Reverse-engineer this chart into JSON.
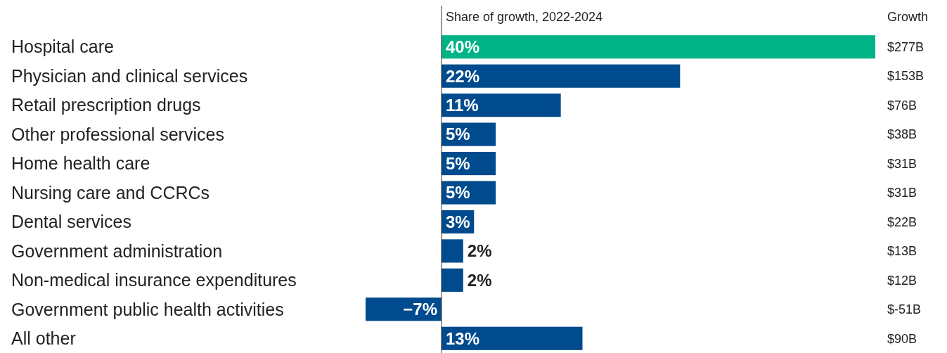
{
  "chart_data": {
    "type": "bar",
    "orientation": "horizontal",
    "title": "Share of growth, 2022-2024",
    "categories": [
      "Hospital care",
      "Physician and clinical services",
      "Retail prescription drugs",
      "Other professional services",
      "Home health care",
      "Nursing care and CCRCs",
      "Dental services",
      "Government administration",
      "Non-medical insurance expenditures",
      "Government public health activities",
      "All other"
    ],
    "values": [
      40,
      22,
      11,
      5,
      5,
      5,
      3,
      2,
      2,
      -7,
      13
    ],
    "value_labels": [
      "40%",
      "22%",
      "11%",
      "5%",
      "5%",
      "5%",
      "3%",
      "2%",
      "2%",
      "−7%",
      "13%"
    ],
    "colors": [
      "#00b386",
      "#004b8d",
      "#004b8d",
      "#004b8d",
      "#004b8d",
      "#004b8d",
      "#004b8d",
      "#004b8d",
      "#004b8d",
      "#004b8d",
      "#004b8d"
    ],
    "annotations": [
      "Growth",
      "$277B",
      "$153B",
      "$76B",
      "$38B",
      "$31B",
      "$31B",
      "$22B",
      "$13B",
      "$12B",
      "$-51B",
      "$90B"
    ]
  }
}
